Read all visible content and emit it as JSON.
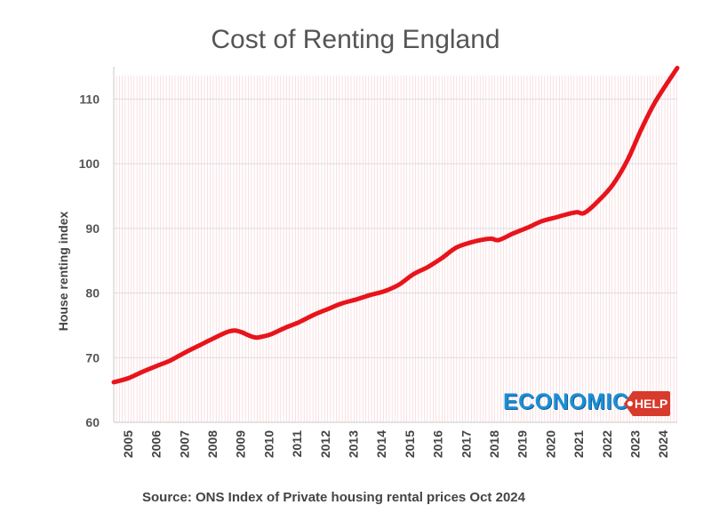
{
  "chart_data": {
    "type": "line",
    "title": "Cost of Renting England",
    "ylabel": "House renting index",
    "xlabel": "",
    "ylim": [
      60,
      115
    ],
    "xlim": [
      2005,
      2024.75
    ],
    "yticks": [
      60,
      70,
      80,
      90,
      100,
      110
    ],
    "xticks": [
      "2005",
      "2006",
      "2007",
      "2008",
      "2009",
      "2010",
      "2011",
      "2012",
      "2013",
      "2014",
      "2015",
      "2016",
      "2017",
      "2018",
      "2019",
      "2020",
      "2021",
      "2022",
      "2023",
      "2024"
    ],
    "grid": "horizontal",
    "legend": "none",
    "line_color": "#e8141b",
    "series": [
      {
        "x": [
          2005,
          2005.5,
          2006,
          2006.5,
          2007,
          2007.5,
          2008,
          2008.5,
          2009,
          2009.25,
          2009.5,
          2009.75,
          2010,
          2010.25,
          2010.5,
          2011,
          2011.5,
          2012,
          2012.5,
          2013,
          2013.5,
          2014,
          2014.5,
          2015,
          2015.5,
          2016,
          2016.5,
          2017,
          2017.5,
          2018,
          2018.25,
          2018.5,
          2019,
          2019.5,
          2020,
          2020.5,
          2021,
          2021.25,
          2021.5,
          2022,
          2022.5,
          2023,
          2023.5,
          2024,
          2024.75
        ],
        "values": [
          66.2,
          66.8,
          67.8,
          68.7,
          69.6,
          70.8,
          71.9,
          73.0,
          74.0,
          74.2,
          73.9,
          73.4,
          73.1,
          73.3,
          73.6,
          74.6,
          75.5,
          76.6,
          77.5,
          78.4,
          79.0,
          79.7,
          80.3,
          81.3,
          82.9,
          84.0,
          85.4,
          87.0,
          87.8,
          88.3,
          88.4,
          88.2,
          89.2,
          90.1,
          91.1,
          91.7,
          92.3,
          92.5,
          92.4,
          94.3,
          96.8,
          100.5,
          105.4,
          109.7,
          114.8
        ]
      }
    ],
    "source": "Source: ONS Index of Private housing rental prices Oct 2024"
  },
  "watermark": {
    "text": "ECONOMICS",
    "tag": "HELP",
    "colors": {
      "word": "#1b8fd6",
      "tag": "#d83a2c"
    }
  }
}
